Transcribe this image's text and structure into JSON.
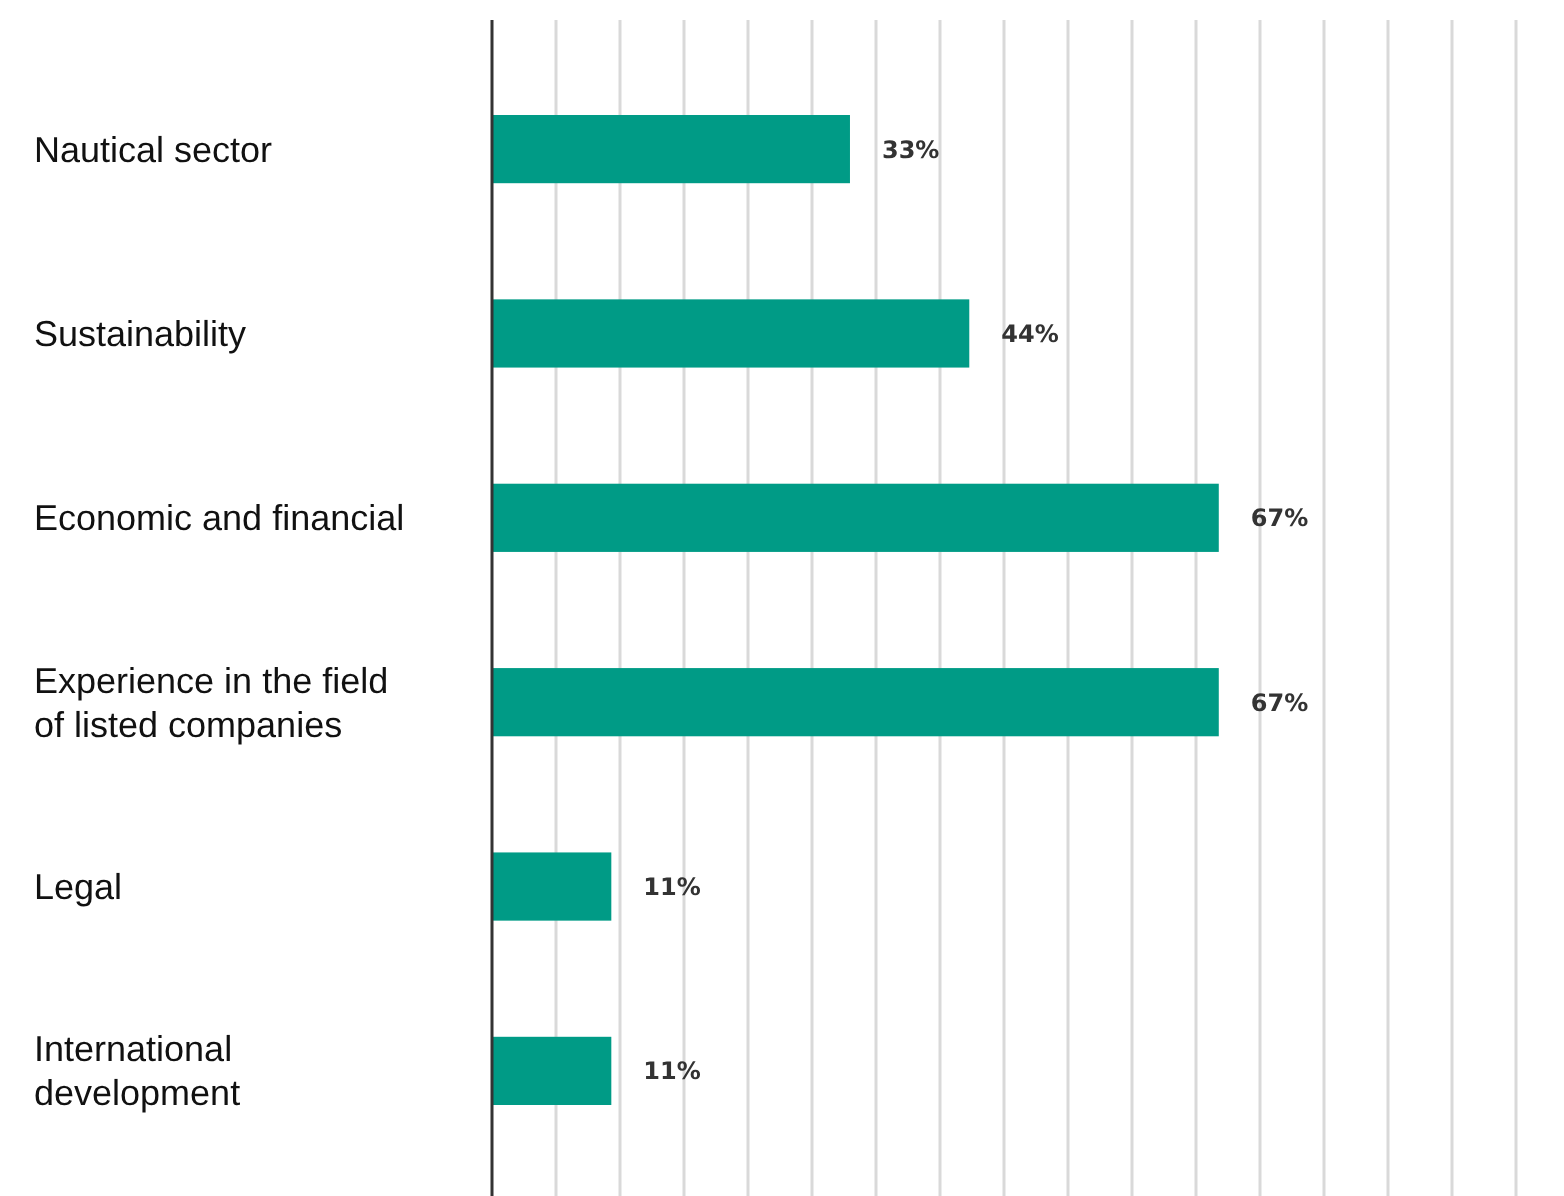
{
  "chart_data": {
    "type": "bar",
    "orientation": "horizontal",
    "categories": [
      "Nautical sector",
      "Sustainability",
      "Economic and financial",
      "Experience in the field of listed companies",
      "Legal",
      "International development"
    ],
    "values": [
      33,
      44,
      67,
      67,
      11,
      11
    ],
    "color": "#009b86",
    "value_labels": [
      "33%",
      "44%",
      "67%",
      "67%",
      "11%",
      "11%"
    ],
    "xlim": [
      0,
      94.4
    ],
    "xticks": [
      {
        "value": 0,
        "label": null
      },
      {
        "value": 5.9,
        "label": null
      },
      {
        "value": 11.8,
        "label": null
      },
      {
        "value": 17.7,
        "label": null
      },
      {
        "value": 23.6,
        "label": null
      },
      {
        "value": 29.5,
        "label": null
      },
      {
        "value": 35.4,
        "label": null
      },
      {
        "value": 41.3,
        "label": null
      },
      {
        "value": 47.2,
        "label": null
      },
      {
        "value": 53.1,
        "label": null
      },
      {
        "value": 59,
        "label": null
      },
      {
        "value": 64.9,
        "label": null
      },
      {
        "value": 70.8,
        "label": null
      },
      {
        "value": 76.7,
        "label": null
      },
      {
        "value": 82.6,
        "label": null
      },
      {
        "value": 88.5,
        "label": null
      },
      {
        "value": 94.4,
        "label": null
      }
    ],
    "grid": "x",
    "tick_labels": "y"
  }
}
